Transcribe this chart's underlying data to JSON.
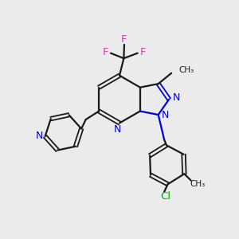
{
  "bg_color": "#ebebeb",
  "bond_color": "#1a1a1a",
  "n_color": "#0000dd",
  "f_color": "#cc44aa",
  "cl_color": "#00aa00",
  "figsize": [
    3.0,
    3.0
  ],
  "dpi": 100,
  "xlim": [
    0,
    10
  ],
  "ylim": [
    0,
    10
  ]
}
